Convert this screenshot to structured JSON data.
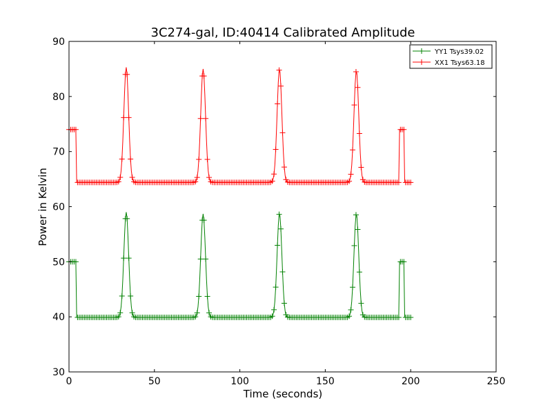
{
  "chart_data": {
    "type": "line",
    "title": "3C274-gal, ID:40414 Calibrated Amplitude",
    "xlabel": "Time (seconds)",
    "ylabel": "Power in Kelvin",
    "xlim": [
      0,
      250
    ],
    "ylim": [
      30,
      90
    ],
    "x_ticks": [
      0,
      50,
      100,
      150,
      200,
      250
    ],
    "y_ticks": [
      30,
      40,
      50,
      60,
      70,
      80,
      90
    ],
    "x_tick_labels": [
      "0",
      "50",
      "100",
      "150",
      "200",
      "250"
    ],
    "y_tick_labels": [
      "30",
      "40",
      "50",
      "60",
      "70",
      "80",
      "90"
    ],
    "grid": false,
    "legend_position": "top-right",
    "marker": "+",
    "sample_spacing_seconds": 1,
    "series": [
      {
        "name": "YY1 Tsys39.02",
        "color": "#008000",
        "baseline": 39.9,
        "cal_level": 50.0,
        "peaks": [
          {
            "time": 33.5,
            "value": 59.0
          },
          {
            "time": 78.5,
            "value": 58.7
          },
          {
            "time": 123.2,
            "value": 58.8
          },
          {
            "time": 168.2,
            "value": 58.7
          }
        ],
        "cal_segments": [
          [
            0,
            4
          ],
          [
            193.5,
            196
          ]
        ],
        "end_time": 200,
        "points": [
          [
            0,
            50.0
          ],
          [
            4,
            50.0
          ],
          [
            4.5,
            39.9
          ],
          [
            30,
            39.9
          ],
          [
            33.5,
            59.0
          ],
          [
            37,
            39.9
          ],
          [
            75,
            39.9
          ],
          [
            78.5,
            58.7
          ],
          [
            82,
            39.9
          ],
          [
            120,
            39.9
          ],
          [
            123.2,
            58.8
          ],
          [
            127,
            39.9
          ],
          [
            165,
            39.9
          ],
          [
            168.2,
            58.7
          ],
          [
            172,
            39.9
          ],
          [
            193,
            39.9
          ],
          [
            193.5,
            50.0
          ],
          [
            196,
            50.0
          ],
          [
            196.5,
            39.9
          ],
          [
            200,
            39.9
          ]
        ]
      },
      {
        "name": "XX1 Tsys63.18",
        "color": "#ff0000",
        "baseline": 64.4,
        "cal_level": 74.0,
        "peaks": [
          {
            "time": 33.5,
            "value": 85.3
          },
          {
            "time": 78.5,
            "value": 85.0
          },
          {
            "time": 123.2,
            "value": 85.0
          },
          {
            "time": 168.2,
            "value": 84.7
          }
        ],
        "cal_segments": [
          [
            0,
            4
          ],
          [
            193.5,
            196
          ]
        ],
        "end_time": 200,
        "points": [
          [
            0,
            74.0
          ],
          [
            4,
            74.0
          ],
          [
            4.5,
            64.4
          ],
          [
            30,
            64.4
          ],
          [
            33.5,
            85.3
          ],
          [
            37,
            64.4
          ],
          [
            75,
            64.4
          ],
          [
            78.5,
            85.0
          ],
          [
            82,
            64.4
          ],
          [
            120,
            64.4
          ],
          [
            123.2,
            85.0
          ],
          [
            127,
            64.4
          ],
          [
            165,
            64.4
          ],
          [
            168.2,
            84.7
          ],
          [
            172,
            64.4
          ],
          [
            193,
            64.4
          ],
          [
            193.5,
            74.0
          ],
          [
            196,
            74.0
          ],
          [
            196.5,
            64.4
          ],
          [
            200,
            64.4
          ]
        ]
      }
    ]
  }
}
